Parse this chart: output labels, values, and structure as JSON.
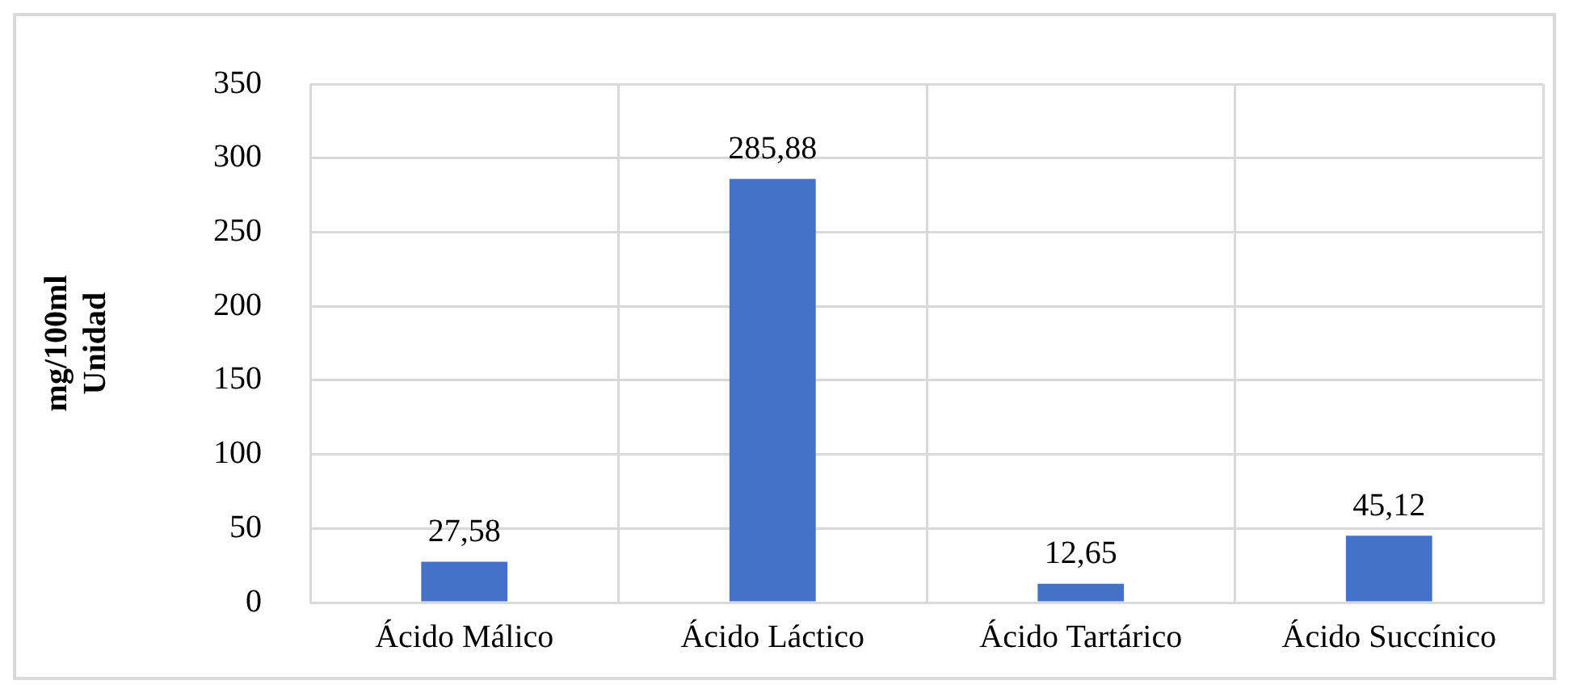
{
  "chart_data": {
    "type": "bar",
    "ylabel": "mg/100ml\nUnidad",
    "categories": [
      "Ácido Málico",
      "Ácido Láctico",
      "Ácido Tartárico",
      "Ácido Succínico"
    ],
    "values": [
      27.58,
      285.88,
      12.65,
      45.12
    ],
    "value_labels": [
      "27,58",
      "285,88",
      "12,65",
      "45,12"
    ],
    "color": "#4472c4",
    "ylim": [
      0,
      350
    ],
    "yticks": [
      0,
      50,
      100,
      150,
      200,
      250,
      300,
      350
    ],
    "grid": true,
    "legend": false
  }
}
